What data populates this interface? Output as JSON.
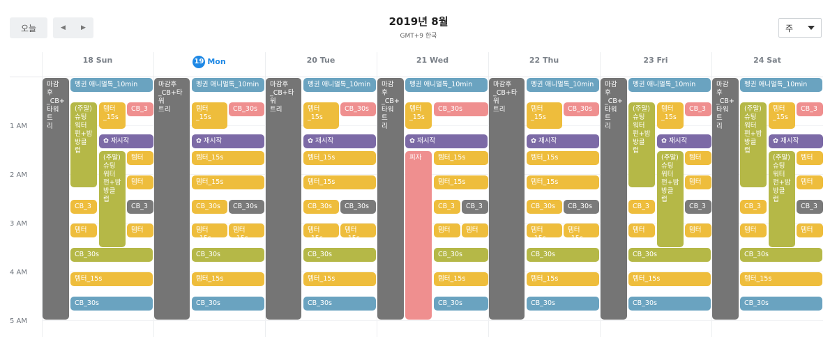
{
  "toolbar": {
    "today_label": "오늘",
    "prev_icon": "◀",
    "next_icon": "▶",
    "view_value": "주"
  },
  "header": {
    "title": "2019년 8월",
    "timezone": "GMT+9 한국"
  },
  "days": [
    {
      "date": "18",
      "label": "18 Sun",
      "today": false
    },
    {
      "date": "19",
      "label": "Mon",
      "today": true
    },
    {
      "date": "20",
      "label": "20 Tue",
      "today": false
    },
    {
      "date": "21",
      "label": "21 Wed",
      "today": false
    },
    {
      "date": "22",
      "label": "22 Thu",
      "today": false
    },
    {
      "date": "23",
      "label": "23 Fri",
      "today": false
    },
    {
      "date": "24",
      "label": "24 Sat",
      "today": false
    }
  ],
  "times": [
    "1 AM",
    "2 AM",
    "3 AM",
    "4 AM",
    "5 AM"
  ],
  "colors": {
    "gray": "#757575",
    "blue": "#6aa3c0",
    "yellow": "#eebd3c",
    "olive": "#b5b847",
    "purple": "#7c6aa6",
    "pink": "#ef8f8f",
    "accent": "#1e88e5"
  },
  "events": {
    "d0": [
      "마감후\n_CB+\n타워트\n리",
      "펭귄 애니멀톡_10min",
      "(주말)\n슈팅\n워터\n펀+밤\n방클\n럽",
      "템터\n_15s",
      "CB_3",
      "재시작",
      "(주말)\n슈팅\n워터\n펀+밤\n방클\n럽",
      "템터",
      "템터",
      "CB_3",
      "CB_3",
      "템터",
      "템터",
      "CB_30s",
      "템터_15s",
      "CB_30s"
    ],
    "d1": [
      "마감후\n_CB+타워\n트리",
      "펭귄 애니멀톡_10min",
      "템터_15s",
      "CB_30s",
      "재시작",
      "템터_15s",
      "템터_15s",
      "CB_30s",
      "CB_30s",
      "템터_15s",
      "템터_15s",
      "CB_30s",
      "템터_15s",
      "CB_30s"
    ],
    "d2": [
      "마감후\n_CB+타워\n트리",
      "펭귄 애니멀톡_10min",
      "템터_15s",
      "CB_30s",
      "재시작",
      "템터_15s",
      "템터_15s",
      "CB_30s",
      "CB_30s",
      "템터_15s",
      "템터_15s",
      "CB_30s",
      "템터_15s",
      "CB_30s"
    ],
    "d3": [
      "마감후\n_CB+\n타워트\n리",
      "펭귄 애니멀톡_10min",
      "템터\n_15s",
      "CB_30s",
      "재시작",
      "피자",
      "템터_15s",
      "템터_15s",
      "CB_3",
      "CB_3",
      "템터",
      "템터",
      "CB_30s",
      "템터_15s",
      "CB_30s"
    ],
    "d4": [
      "마감후\n_CB+타워\n트리",
      "펭귄 애니멀톡_10min",
      "템터_15s",
      "CB_30s",
      "재시작",
      "템터_15s",
      "템터_15s",
      "CB_30s",
      "CB_30s",
      "템터_15s",
      "템터_15s",
      "CB_30s",
      "템터_15s",
      "CB_30s"
    ],
    "d5": [
      "마감후\n_CB+\n타워트\n리",
      "펭귄 애니멀톡_10min",
      "(주말)\n슈팅\n워터\n펀+밤\n방클\n럽",
      "템터\n_15s",
      "CB_3",
      "재시작",
      "(주말)\n슈팅\n워터\n펀+밤\n방클\n럽",
      "템터",
      "템터",
      "CB_3",
      "CB_3",
      "템터",
      "템터",
      "CB_30s",
      "템터_15s",
      "CB_30s"
    ],
    "d6": [
      "마감후\n_CB+\n타워트\n리",
      "펭귄 애니멀톡_10min",
      "(주말)\n슈팅\n워터\n펀+밤\n방클\n럽",
      "템터\n_15s",
      "CB_3",
      "재시작",
      "(주말)\n슈팅\n워터\n펀+밤\n방클\n럽",
      "템터",
      "템터",
      "CB_3",
      "CB_3",
      "템터",
      "템터",
      "CB_30s",
      "템터_15s",
      "CB_30s"
    ]
  }
}
